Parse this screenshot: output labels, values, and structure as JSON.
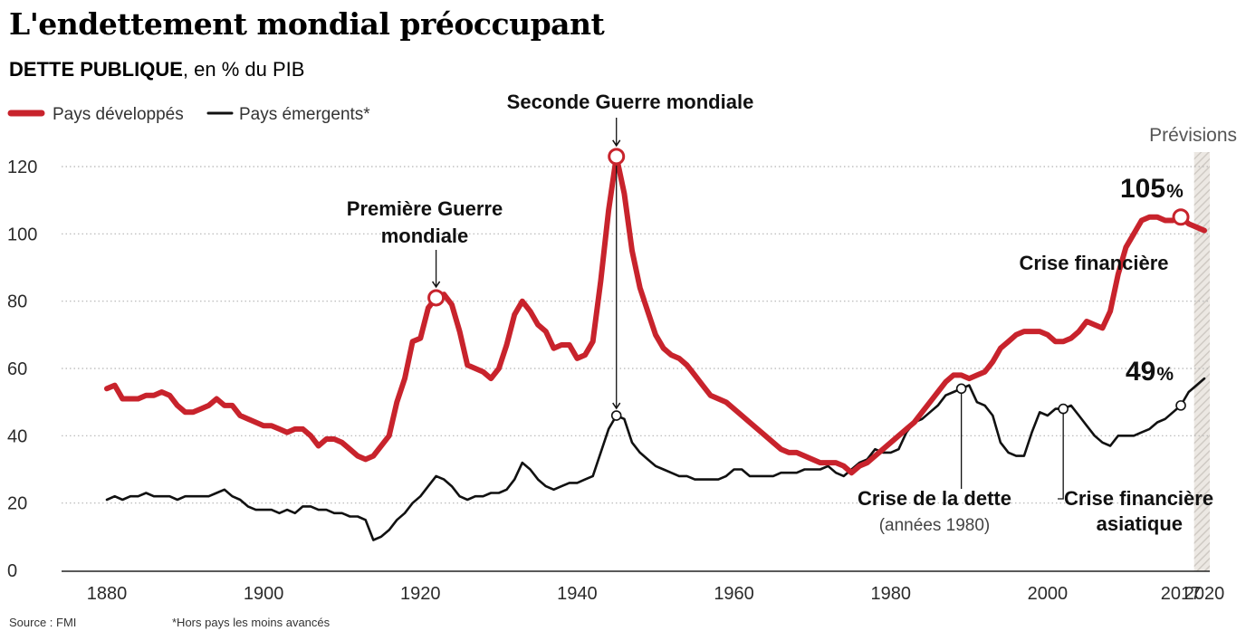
{
  "header": {
    "title": "L'endettement mondial préoccupant",
    "subtitle_main": "DETTE PUBLIQUE",
    "subtitle_rest": ", en % du PIB"
  },
  "legend": {
    "developed": "Pays développés",
    "emerging": "Pays émergents*"
  },
  "annotations": {
    "ww2": "Seconde Guerre mondiale",
    "ww1_line1": "Première Guerre",
    "ww1_line2": "mondiale",
    "financial_crisis": "Crise financière",
    "debt_crisis": "Crise de la dette",
    "debt_crisis_sub": "(années 1980)",
    "asian_crisis_line1": "Crise financière",
    "asian_crisis_line2": "asiatique",
    "developed_2017_value": "105",
    "emerging_2017_value": "49",
    "pct_sign": "%"
  },
  "forecast_label": "Prévisions",
  "footer": {
    "source": "Source : FMI",
    "note": "*Hors pays les moins avancés"
  },
  "colors": {
    "developed": "#c8232c",
    "emerging": "#111111",
    "grid": "#b5b5b5",
    "forecast_hatch": "#cfcac4"
  },
  "chart_data": {
    "type": "line",
    "title": "L'endettement mondial préoccupant",
    "subtitle": "DETTE PUBLIQUE, en % du PIB",
    "xlabel": "",
    "ylabel": "",
    "xlim": [
      1880,
      2020
    ],
    "ylim": [
      0,
      120
    ],
    "x_ticks": [
      1880,
      1900,
      1920,
      1940,
      1960,
      1980,
      2000,
      2017,
      2020
    ],
    "y_ticks": [
      0,
      20,
      40,
      60,
      80,
      100,
      120
    ],
    "grid": "horizontal dotted",
    "legend_position": "top-left",
    "forecast_start": 2018,
    "series": [
      {
        "name": "Pays développés",
        "color": "#c8232c",
        "x": [
          1880,
          1881,
          1882,
          1883,
          1884,
          1885,
          1886,
          1887,
          1888,
          1889,
          1890,
          1891,
          1892,
          1893,
          1894,
          1895,
          1896,
          1897,
          1898,
          1899,
          1900,
          1901,
          1902,
          1903,
          1904,
          1905,
          1906,
          1907,
          1908,
          1909,
          1910,
          1911,
          1912,
          1913,
          1914,
          1915,
          1916,
          1917,
          1918,
          1919,
          1920,
          1921,
          1922,
          1923,
          1924,
          1925,
          1926,
          1927,
          1928,
          1929,
          1930,
          1931,
          1932,
          1933,
          1934,
          1935,
          1936,
          1937,
          1938,
          1939,
          1940,
          1941,
          1942,
          1943,
          1944,
          1945,
          1946,
          1947,
          1948,
          1949,
          1950,
          1951,
          1952,
          1953,
          1954,
          1955,
          1956,
          1957,
          1958,
          1959,
          1960,
          1961,
          1962,
          1963,
          1964,
          1965,
          1966,
          1967,
          1968,
          1969,
          1970,
          1971,
          1972,
          1973,
          1974,
          1975,
          1976,
          1977,
          1978,
          1979,
          1980,
          1981,
          1982,
          1983,
          1984,
          1985,
          1986,
          1987,
          1988,
          1989,
          1990,
          1991,
          1992,
          1993,
          1994,
          1995,
          1996,
          1997,
          1998,
          1999,
          2000,
          2001,
          2002,
          2003,
          2004,
          2005,
          2006,
          2007,
          2008,
          2009,
          2010,
          2011,
          2012,
          2013,
          2014,
          2015,
          2016,
          2017,
          2018,
          2019,
          2020
        ],
        "values": [
          54,
          55,
          51,
          51,
          51,
          52,
          52,
          53,
          52,
          49,
          47,
          47,
          48,
          49,
          51,
          49,
          49,
          46,
          45,
          44,
          43,
          43,
          42,
          41,
          42,
          42,
          40,
          37,
          39,
          39,
          38,
          36,
          34,
          33,
          34,
          37,
          40,
          50,
          57,
          68,
          69,
          78,
          81,
          82,
          79,
          71,
          61,
          60,
          59,
          57,
          60,
          67,
          76,
          80,
          77,
          73,
          71,
          66,
          67,
          67,
          63,
          64,
          68,
          86,
          107,
          123,
          112,
          95,
          84,
          77,
          70,
          66,
          64,
          63,
          61,
          58,
          55,
          52,
          51,
          50,
          48,
          46,
          44,
          42,
          40,
          38,
          36,
          35,
          35,
          34,
          33,
          32,
          32,
          32,
          31,
          29,
          31,
          32,
          34,
          36,
          38,
          40,
          42,
          44,
          47,
          50,
          53,
          56,
          58,
          58,
          57,
          58,
          59,
          62,
          66,
          68,
          70,
          71,
          71,
          71,
          70,
          68,
          68,
          69,
          71,
          74,
          73,
          72,
          77,
          88,
          96,
          100,
          104,
          105,
          105,
          104,
          104,
          105,
          103,
          102,
          101
        ]
      },
      {
        "name": "Pays émergents*",
        "color": "#111111",
        "x": [
          1880,
          1881,
          1882,
          1883,
          1884,
          1885,
          1886,
          1887,
          1888,
          1889,
          1890,
          1891,
          1892,
          1893,
          1894,
          1895,
          1896,
          1897,
          1898,
          1899,
          1900,
          1901,
          1902,
          1903,
          1904,
          1905,
          1906,
          1907,
          1908,
          1909,
          1910,
          1911,
          1912,
          1913,
          1914,
          1915,
          1916,
          1917,
          1918,
          1919,
          1920,
          1921,
          1922,
          1923,
          1924,
          1925,
          1926,
          1927,
          1928,
          1929,
          1930,
          1931,
          1932,
          1933,
          1934,
          1935,
          1936,
          1937,
          1938,
          1939,
          1940,
          1941,
          1942,
          1943,
          1944,
          1945,
          1946,
          1947,
          1948,
          1949,
          1950,
          1951,
          1952,
          1953,
          1954,
          1955,
          1956,
          1957,
          1958,
          1959,
          1960,
          1961,
          1962,
          1963,
          1964,
          1965,
          1966,
          1967,
          1968,
          1969,
          1970,
          1971,
          1972,
          1973,
          1974,
          1975,
          1976,
          1977,
          1978,
          1979,
          1980,
          1981,
          1982,
          1983,
          1984,
          1985,
          1986,
          1987,
          1988,
          1989,
          1990,
          1991,
          1992,
          1993,
          1994,
          1995,
          1996,
          1997,
          1998,
          1999,
          2000,
          2001,
          2002,
          2003,
          2004,
          2005,
          2006,
          2007,
          2008,
          2009,
          2010,
          2011,
          2012,
          2013,
          2014,
          2015,
          2016,
          2017,
          2018,
          2019,
          2020
        ],
        "values": [
          21,
          22,
          21,
          22,
          22,
          23,
          22,
          22,
          22,
          21,
          22,
          22,
          22,
          22,
          23,
          24,
          22,
          21,
          19,
          18,
          18,
          18,
          17,
          18,
          17,
          19,
          19,
          18,
          18,
          17,
          17,
          16,
          16,
          15,
          9,
          10,
          12,
          15,
          17,
          20,
          22,
          25,
          28,
          27,
          25,
          22,
          21,
          22,
          22,
          23,
          23,
          24,
          27,
          32,
          30,
          27,
          25,
          24,
          25,
          26,
          26,
          27,
          28,
          35,
          42,
          46,
          45,
          38,
          35,
          33,
          31,
          30,
          29,
          28,
          28,
          27,
          27,
          27,
          27,
          28,
          30,
          30,
          28,
          28,
          28,
          28,
          29,
          29,
          29,
          30,
          30,
          30,
          31,
          29,
          28,
          30,
          32,
          33,
          36,
          35,
          35,
          36,
          41,
          44,
          45,
          47,
          49,
          52,
          53,
          54,
          55,
          50,
          49,
          46,
          38,
          35,
          34,
          34,
          41,
          47,
          46,
          48,
          48,
          49,
          46,
          43,
          40,
          38,
          37,
          40,
          40,
          40,
          41,
          42,
          44,
          45,
          47,
          49,
          53,
          55,
          57
        ]
      }
    ]
  }
}
